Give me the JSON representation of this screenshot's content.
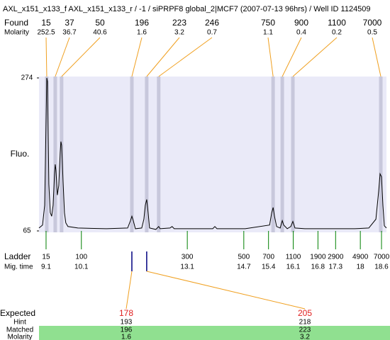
{
  "chart_data": {
    "type": "line",
    "title": "AXL_x151_x133_f  AXL_x151_x133_r / -1  / siPRPF8 global_2|MCF7 (2007-07-13 96hrs) / Well ID 1124509",
    "ylabel": "Fluo.",
    "labels": {
      "found": "Found",
      "molarity": "Molarity",
      "ladder": "Ladder",
      "mig_time": "Mig. time",
      "expected": "Expected",
      "hint": "Hint",
      "matched": "Matched",
      "expected_molarity": "Molarity"
    },
    "color": "#000000",
    "xlim": [
      8.9,
      18.74
    ],
    "ylim": [
      65,
      274
    ],
    "yticks": [
      65,
      274
    ],
    "x": [
      8.9,
      9.0,
      9.06,
      9.1,
      9.12,
      9.14,
      9.18,
      9.22,
      9.26,
      9.3,
      9.34,
      9.36,
      9.38,
      9.42,
      9.46,
      9.5,
      9.52,
      9.54,
      9.58,
      9.62,
      9.66,
      9.72,
      10.0,
      10.81,
      11.41,
      11.49,
      11.53,
      11.57,
      11.63,
      11.81,
      11.87,
      11.91,
      11.95,
      11.99,
      12.03,
      12.21,
      12.29,
      12.33,
      12.61,
      12.67,
      12.73,
      13.82,
      13.88,
      13.94,
      14.22,
      14.74,
      15.43,
      15.49,
      15.53,
      15.57,
      15.63,
      15.73,
      15.79,
      15.83,
      15.93,
      16.03,
      16.09,
      16.15,
      16.43,
      17.84,
      18.24,
      18.44,
      18.52,
      18.56,
      18.6,
      18.64,
      18.68,
      18.74
    ],
    "values": [
      69,
      73,
      100,
      216,
      274,
      269,
      129,
      90,
      85,
      100,
      143,
      156,
      148,
      114,
      127,
      172,
      187,
      182,
      134,
      90,
      76,
      71,
      69,
      68,
      69,
      79,
      85,
      79,
      68,
      69,
      81,
      100,
      108,
      90,
      69,
      67,
      71,
      68,
      69,
      71,
      68,
      68,
      71,
      68,
      68,
      68,
      73,
      90,
      97,
      85,
      71,
      69,
      79,
      73,
      68,
      71,
      78,
      69,
      68,
      68,
      69,
      81,
      119,
      143,
      139,
      100,
      72,
      69
    ],
    "found": [
      {
        "size": 15,
        "molarity": 252.5,
        "time": 9.12
      },
      {
        "size": 37,
        "molarity": 36.7,
        "time": 9.36
      },
      {
        "size": 50,
        "molarity": 40.6,
        "time": 9.54
      },
      {
        "size": 196,
        "molarity": 1.6,
        "time": 11.53
      },
      {
        "size": 223,
        "molarity": 3.2,
        "time": 11.95
      },
      {
        "size": 246,
        "molarity": 0.7,
        "time": 12.29
      },
      {
        "size": 750,
        "molarity": 1.1,
        "time": 15.53
      },
      {
        "size": 900,
        "molarity": 0.4,
        "time": 15.79
      },
      {
        "size": 1100,
        "molarity": 0.2,
        "time": 16.09
      },
      {
        "size": 7000,
        "molarity": 0.5,
        "time": 18.58
      }
    ],
    "ladder": [
      {
        "size": 15,
        "time": 9.1
      },
      {
        "size": 100,
        "time": 10.1
      },
      {
        "size": 300,
        "time": 13.1
      },
      {
        "size": 500,
        "time": 14.7
      },
      {
        "size": 700,
        "time": 15.4
      },
      {
        "size": 1100,
        "time": 16.1
      },
      {
        "size": 1900,
        "time": 16.8
      },
      {
        "size": 2900,
        "time": 17.3
      },
      {
        "size": 4900,
        "time": 18
      },
      {
        "size": 7000,
        "time": 18.6
      }
    ],
    "expected": [
      {
        "expected": 178,
        "hint": 193,
        "matched": 196,
        "molarity": 1.6
      },
      {
        "expected": 205,
        "hint": 218,
        "matched": 223,
        "molarity": 3.2
      }
    ]
  }
}
